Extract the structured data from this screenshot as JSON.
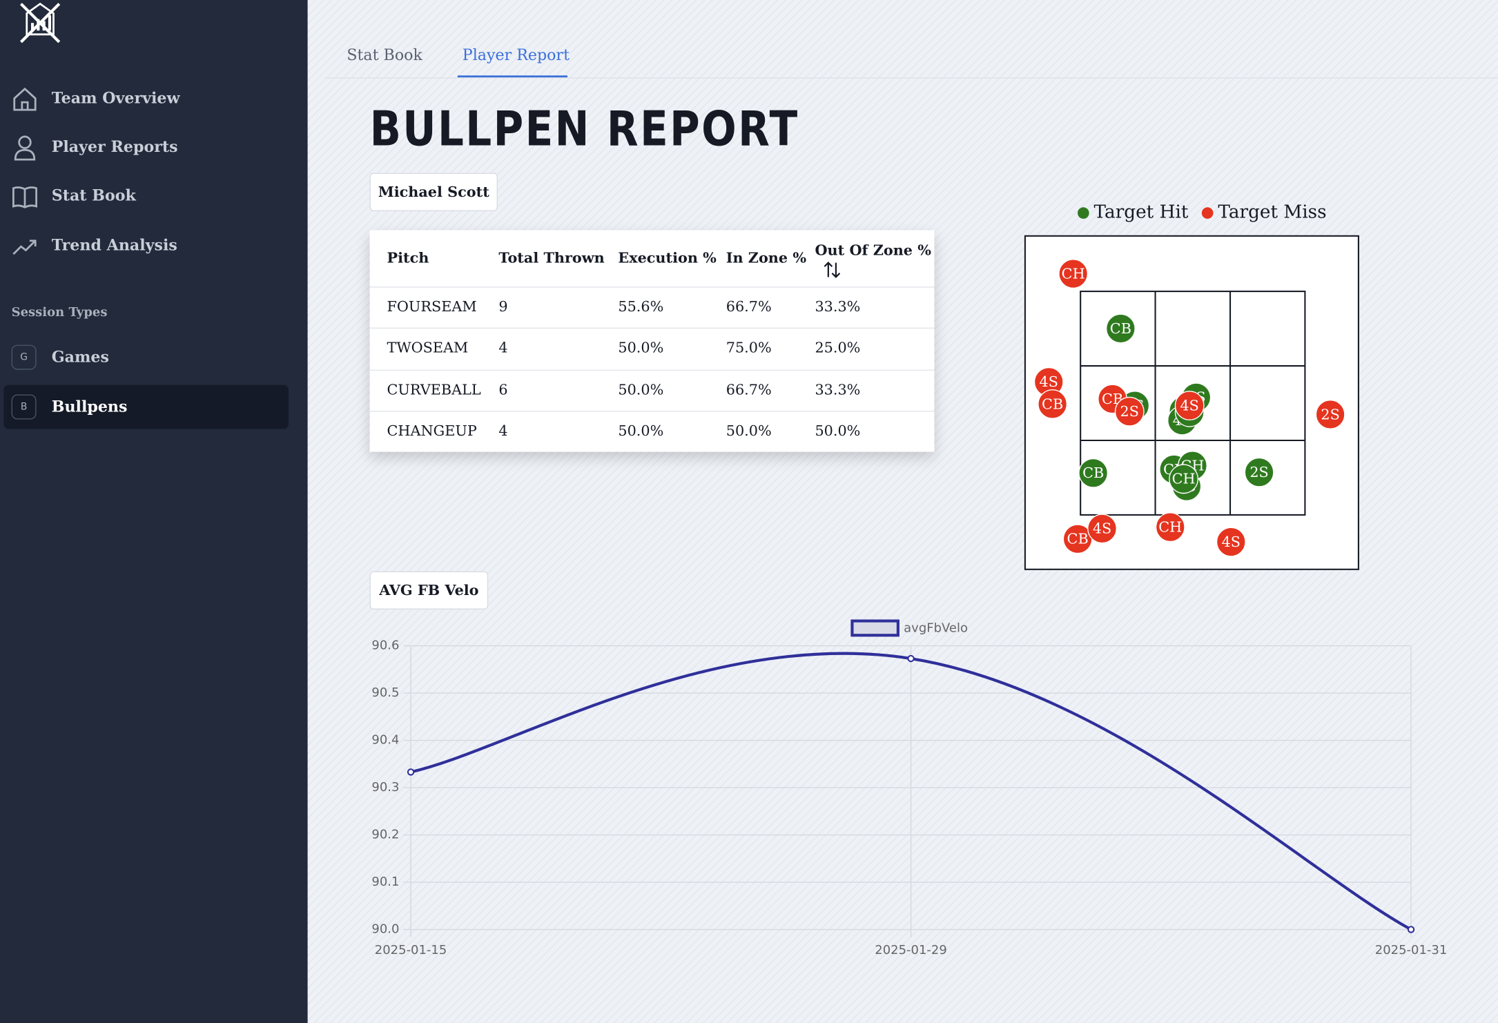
{
  "sidebar": {
    "nav": [
      "Team Overview",
      "Player Reports",
      "Stat Book",
      "Trend Analysis"
    ],
    "section_title": "Session Types",
    "sessions": [
      {
        "badge": "G",
        "label": "Games"
      },
      {
        "badge": "B",
        "label": "Bullpens"
      }
    ]
  },
  "tabs": [
    "Stat Book",
    "Player Report"
  ],
  "title": "BULLPEN REPORT",
  "player": "Michael Scott",
  "table": {
    "columns": [
      "Pitch",
      "Total Thrown",
      "Execution %",
      "In Zone %",
      "Out Of Zone %"
    ],
    "rows": [
      [
        "FOURSEAM",
        "9",
        "55.6%",
        "66.7%",
        "33.3%"
      ],
      [
        "TWOSEAM",
        "4",
        "50.0%",
        "75.0%",
        "25.0%"
      ],
      [
        "CURVEBALL",
        "6",
        "50.0%",
        "66.7%",
        "33.3%"
      ],
      [
        "CHANGEUP",
        "4",
        "50.0%",
        "50.0%",
        "50.0%"
      ]
    ]
  },
  "chart_button": "AVG FB Velo",
  "chart_data": [
    {
      "type": "scatter",
      "xlim": [
        -0.75,
        3.75
      ],
      "ylim": [
        -0.75,
        3.75
      ],
      "series": [
        {
          "name": "Target Hit",
          "color": "#2f7a1f",
          "x": [
            0.54,
            0.73,
            1.56,
            1.39,
            1.37,
            1.47,
            1.43,
            0.17,
            1.26,
            1.51,
            1.39,
            2.41
          ],
          "y": [
            2.5,
            1.46,
            1.57,
            1.39,
            1.26,
            1.37,
            0.37,
            0.55,
            0.6,
            0.65,
            0.47,
            0.56
          ],
          "labels": [
            "CB",
            "2S",
            "4S",
            "4S",
            "4S",
            "4S",
            "4S",
            "CB",
            "CB",
            "CH",
            "CH",
            "2S"
          ]
        },
        {
          "name": "Target Miss",
          "color": "#e5341f",
          "x": [
            -0.1,
            -0.43,
            -0.38,
            0.43,
            0.66,
            1.47,
            3.37,
            -0.04,
            0.29,
            1.21,
            2.03
          ],
          "y": [
            3.24,
            1.78,
            1.48,
            1.55,
            1.38,
            1.46,
            1.34,
            -0.34,
            -0.2,
            -0.18,
            -0.38
          ],
          "labels": [
            "CH",
            "4S",
            "CB",
            "CB",
            "2S",
            "4S",
            "2S",
            "CB",
            "4S",
            "CH",
            "4S"
          ]
        }
      ]
    },
    {
      "type": "line",
      "categories": [
        "2025-01-15",
        "2025-01-29",
        "2025-01-31"
      ],
      "series": [
        {
          "name": "avgFbVelo",
          "color": "#2f2f9a",
          "values": [
            90.333,
            90.573,
            90.0
          ]
        }
      ],
      "ylim": [
        90.0,
        90.6
      ],
      "yticks": [
        {
          "value": 90.0,
          "label": "90.0"
        },
        90.1,
        90.2,
        90.3,
        90.4,
        90.5,
        90.6
      ],
      "grid": true
    }
  ]
}
